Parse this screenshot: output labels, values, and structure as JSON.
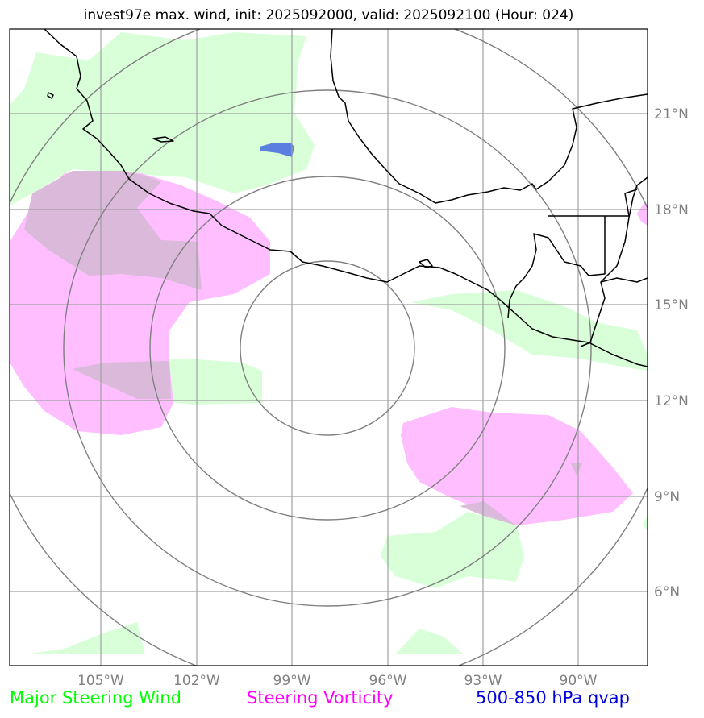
{
  "title": "invest97e max. wind, init: 2025092000, valid: 2025092100 (Hour: 024)",
  "map": {
    "lon_labels": [
      "105°W",
      "102°W",
      "99°W",
      "96°W",
      "93°W",
      "90°W"
    ],
    "lat_labels": [
      "21°N",
      "18°N",
      "15°N",
      "12°N",
      "9°N",
      "6°N"
    ],
    "gridline_color": "#a0a0a0",
    "range_ring_color": "#808080",
    "coastline_color": "#000000"
  },
  "colors": {
    "steering_wind_fill": "#ccffcc",
    "vorticity_fill": "#ffb3ff",
    "overlap_fill": "#dcbadc",
    "qvap_fill": "#5b7fe0"
  },
  "legend": {
    "wind": {
      "label": "Major Steering Wind",
      "color": "#00ff00"
    },
    "vorticity": {
      "label": "Steering Vorticity",
      "color": "#ff00ff"
    },
    "qvap": {
      "label": "500-850 hPa qvap",
      "color": "#0000dd"
    }
  }
}
